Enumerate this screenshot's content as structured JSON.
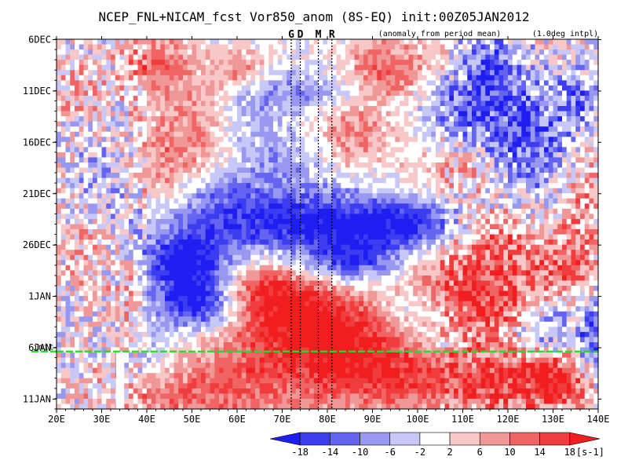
{
  "chart_data": {
    "type": "heatmap",
    "title": "NCEP_FNL+NICAM_fcst Vor850_anom (8S-EQ) init:00Z05JAN2012",
    "subtitle_left": "(anomaly from period mean)",
    "subtitle_right": "(1.0deg intpl)",
    "xlabel": "",
    "ylabel": "",
    "x_ticks": [
      "20E",
      "30E",
      "40E",
      "50E",
      "60E",
      "70E",
      "80E",
      "90E",
      "100E",
      "110E",
      "120E",
      "130E",
      "140E"
    ],
    "x_tick_values": [
      20,
      30,
      40,
      50,
      60,
      70,
      80,
      90,
      100,
      110,
      120,
      130,
      140
    ],
    "xlim": [
      20,
      140
    ],
    "y_ticks": [
      "6DEC",
      "11DEC",
      "16DEC",
      "21DEC",
      "26DEC",
      "1JAN",
      "6JAN",
      "11JAN"
    ],
    "y_tick_values": [
      0,
      5,
      10,
      15,
      20,
      25,
      30,
      35
    ],
    "ylim": [
      0,
      36
    ],
    "y_axis_reversed": true,
    "markers": [
      {
        "label": "G",
        "x": 72
      },
      {
        "label": "D",
        "x": 74
      },
      {
        "label": "M",
        "x": 78
      },
      {
        "label": "R",
        "x": 81
      }
    ],
    "init_label": "init",
    "init_y": 30.4,
    "colorbar": {
      "levels": [
        "-18",
        "-14",
        "-10",
        "-6",
        "-2",
        "2",
        "6",
        "10",
        "14",
        "18"
      ],
      "unit": "[s-1]",
      "colors": [
        "#1e1ef0",
        "#3c3cf0",
        "#6464f0",
        "#9898f0",
        "#c8c8f8",
        "#ffffff",
        "#f8c8c8",
        "#f09898",
        "#f06464",
        "#f03c3c",
        "#f01e1e"
      ]
    },
    "grid": false
  }
}
